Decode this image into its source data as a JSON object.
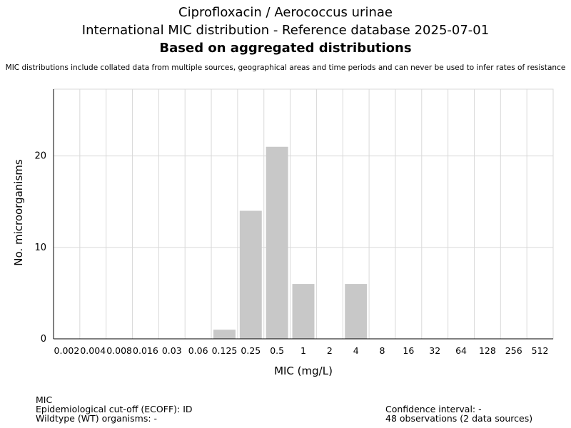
{
  "title": {
    "line1": "Ciprofloxacin / Aerococcus urinae",
    "line2": "International MIC distribution - Reference database 2025-07-01",
    "line3": "Based on aggregated distributions"
  },
  "subtitle": "MIC distributions include collated data from multiple sources, geographical areas and time periods and can never be used to infer rates of resistance",
  "chart_data": {
    "type": "bar",
    "categories": [
      "0.002",
      "0.004",
      "0.008",
      "0.016",
      "0.03",
      "0.06",
      "0.125",
      "0.25",
      "0.5",
      "1",
      "2",
      "4",
      "8",
      "16",
      "32",
      "64",
      "128",
      "256",
      "512"
    ],
    "values": [
      0,
      0,
      0,
      0,
      0,
      0,
      1,
      14,
      21,
      6,
      0,
      6,
      0,
      0,
      0,
      0,
      0,
      0,
      0
    ],
    "xlabel": "MIC (mg/L)",
    "ylabel": "No. microorganisms",
    "ylim": [
      0,
      27.3
    ],
    "yticks": [
      0,
      10,
      20
    ],
    "grid": true,
    "bar_color": "#c8c8c8",
    "grid_color": "#d9d9d9"
  },
  "footer": {
    "left": [
      "MIC",
      "Epidemiological cut-off (ECOFF): ID",
      "Wildtype (WT) organisms:  -"
    ],
    "right": [
      "Confidence interval: -",
      "48 observations (2 data sources)"
    ]
  }
}
